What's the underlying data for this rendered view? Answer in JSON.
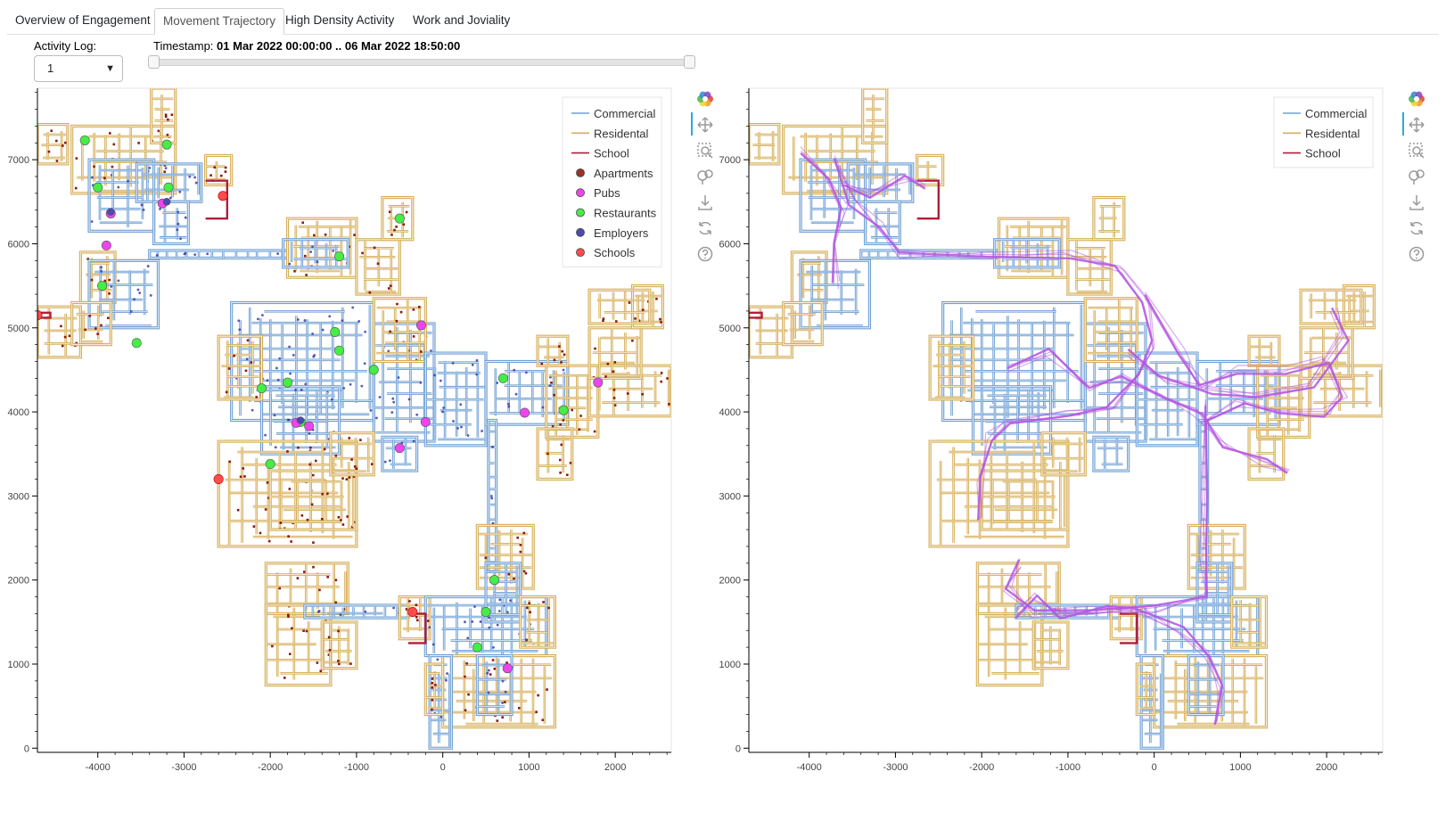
{
  "tabs": [
    {
      "label": "Overview of Engagement",
      "active": false
    },
    {
      "label": "Movement Trajectory",
      "active": true
    },
    {
      "label": "High Density Activity",
      "active": false
    },
    {
      "label": "Work and Joviality",
      "active": false
    }
  ],
  "controls": {
    "activity_log_label": "Activity Log:",
    "activity_log_value": "1",
    "timestamp_label": "Timestamp:",
    "timestamp_value": "01 Mar 2022 00:00:00 .. 06 Mar 2022 18:50:00",
    "slider_range": [
      0,
      1
    ]
  },
  "colors": {
    "commercial": "#6fa0d6",
    "residental": "#d6ae58",
    "school": "#b01e3a",
    "apartments": "#8b1a10",
    "pubs": "#ee44ee",
    "restaurants": "#44ee44",
    "employers": "#3b3ba8",
    "schools_marker": "#ff3b3b",
    "trajectory": "#b454e0"
  },
  "toolbar_icons": [
    "bokeh-logo-icon",
    "pan-icon",
    "box-zoom-icon",
    "wheel-zoom-icon",
    "save-icon",
    "reset-icon",
    "help-icon"
  ],
  "chart_data": [
    {
      "type": "scatter",
      "title": "",
      "xlabel": "",
      "ylabel": "",
      "xlim": [
        -4700,
        2650
      ],
      "ylim": [
        -50,
        7850
      ],
      "x_ticks": [
        "-4000",
        "-3000",
        "-2000",
        "-1000",
        "0",
        "1000",
        "2000"
      ],
      "y_ticks": [
        "0",
        "1000",
        "2000",
        "3000",
        "4000",
        "5000",
        "6000",
        "7000"
      ],
      "grid": false,
      "legend_position": "top-right",
      "legend": [
        {
          "label": "Commercial",
          "kind": "line",
          "color": "#6fa0d6"
        },
        {
          "label": "Residental",
          "kind": "line",
          "color": "#d6ae58"
        },
        {
          "label": "School",
          "kind": "line",
          "color": "#b01e3a"
        },
        {
          "label": "Apartments",
          "kind": "dot",
          "color": "#a0302a"
        },
        {
          "label": "Pubs",
          "kind": "dot",
          "color": "#ee44ee"
        },
        {
          "label": "Restaurants",
          "kind": "dot",
          "color": "#44ee44"
        },
        {
          "label": "Employers",
          "kind": "dot",
          "color": "#4a4ab0"
        },
        {
          "label": "Schools",
          "kind": "dot",
          "color": "#ff4b4b"
        }
      ],
      "series": [
        {
          "name": "Restaurants",
          "color": "#44ee44",
          "points": [
            [
              -4150,
              7230
            ],
            [
              -3200,
              7180
            ],
            [
              -4000,
              6670
            ],
            [
              -3180,
              6670
            ],
            [
              -1200,
              5850
            ],
            [
              -500,
              6300
            ],
            [
              -3950,
              5500
            ],
            [
              -3550,
              4820
            ],
            [
              -1250,
              4950
            ],
            [
              -1200,
              4730
            ],
            [
              -800,
              4500
            ],
            [
              -2100,
              4280
            ],
            [
              -1800,
              4350
            ],
            [
              -1650,
              3880
            ],
            [
              -2000,
              3380
            ],
            [
              700,
              4400
            ],
            [
              1400,
              4020
            ],
            [
              600,
              2000
            ],
            [
              500,
              1620
            ],
            [
              400,
              1200
            ]
          ]
        },
        {
          "name": "Pubs",
          "color": "#ee44ee",
          "points": [
            [
              -3850,
              6360
            ],
            [
              -3250,
              6480
            ],
            [
              -3900,
              5980
            ],
            [
              -250,
              5030
            ],
            [
              1800,
              4350
            ],
            [
              950,
              3990
            ],
            [
              -200,
              3880
            ],
            [
              -1700,
              3870
            ],
            [
              -1550,
              3830
            ],
            [
              -500,
              3570
            ],
            [
              750,
              950
            ]
          ]
        },
        {
          "name": "Employers",
          "color": "#4a4ab0",
          "points": [
            [
              -3850,
              6380
            ],
            [
              -1650,
              3900
            ],
            [
              -3200,
              6500
            ]
          ]
        },
        {
          "name": "Schools",
          "color": "#ff4b4b",
          "points": [
            [
              -4700,
              5150
            ],
            [
              -2550,
              6570
            ],
            [
              -2600,
              3200
            ],
            [
              -350,
              1620
            ]
          ]
        }
      ]
    },
    {
      "type": "line",
      "title": "",
      "xlabel": "",
      "ylabel": "",
      "xlim": [
        -4700,
        2650
      ],
      "ylim": [
        -50,
        7850
      ],
      "x_ticks": [
        "-4000",
        "-3000",
        "-2000",
        "-1000",
        "0",
        "1000",
        "2000"
      ],
      "y_ticks": [
        "0",
        "1000",
        "2000",
        "3000",
        "4000",
        "5000",
        "6000",
        "7000"
      ],
      "grid": false,
      "legend_position": "top-right",
      "legend": [
        {
          "label": "Commercial",
          "kind": "line",
          "color": "#6fa0d6"
        },
        {
          "label": "Residental",
          "kind": "line",
          "color": "#d6ae58"
        },
        {
          "label": "School",
          "kind": "line",
          "color": "#b01e3a"
        }
      ]
    }
  ]
}
